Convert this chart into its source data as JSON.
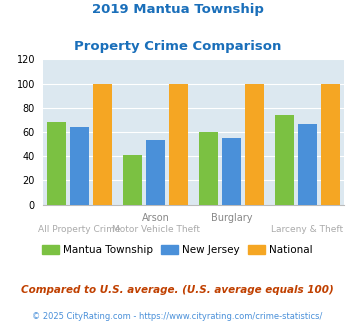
{
  "title_line1": "2019 Mantua Township",
  "title_line2": "Property Crime Comparison",
  "title_color": "#1a6fba",
  "groups": [
    {
      "mantua": 68,
      "nj": 64,
      "national": 100
    },
    {
      "mantua": 41,
      "nj": 53,
      "national": 100
    },
    {
      "mantua": 60,
      "nj": 55,
      "national": 100
    },
    {
      "mantua": 74,
      "nj": 67,
      "national": 100
    }
  ],
  "color_mantua": "#7bc142",
  "color_nj": "#4a90d9",
  "color_national": "#f5a623",
  "ylim": [
    0,
    120
  ],
  "yticks": [
    0,
    20,
    40,
    60,
    80,
    100,
    120
  ],
  "bg_color": "#dce8f0",
  "legend_labels": [
    "Mantua Township",
    "New Jersey",
    "National"
  ],
  "upper_labels": [
    "",
    "Arson",
    "Burglary",
    ""
  ],
  "lower_labels": [
    "All Property Crime",
    "Motor Vehicle Theft",
    "",
    "Larceny & Theft"
  ],
  "footnote1": "Compared to U.S. average. (U.S. average equals 100)",
  "footnote2": "© 2025 CityRating.com - https://www.cityrating.com/crime-statistics/",
  "footnote1_color": "#c04000",
  "footnote2_color": "#4a90d9"
}
